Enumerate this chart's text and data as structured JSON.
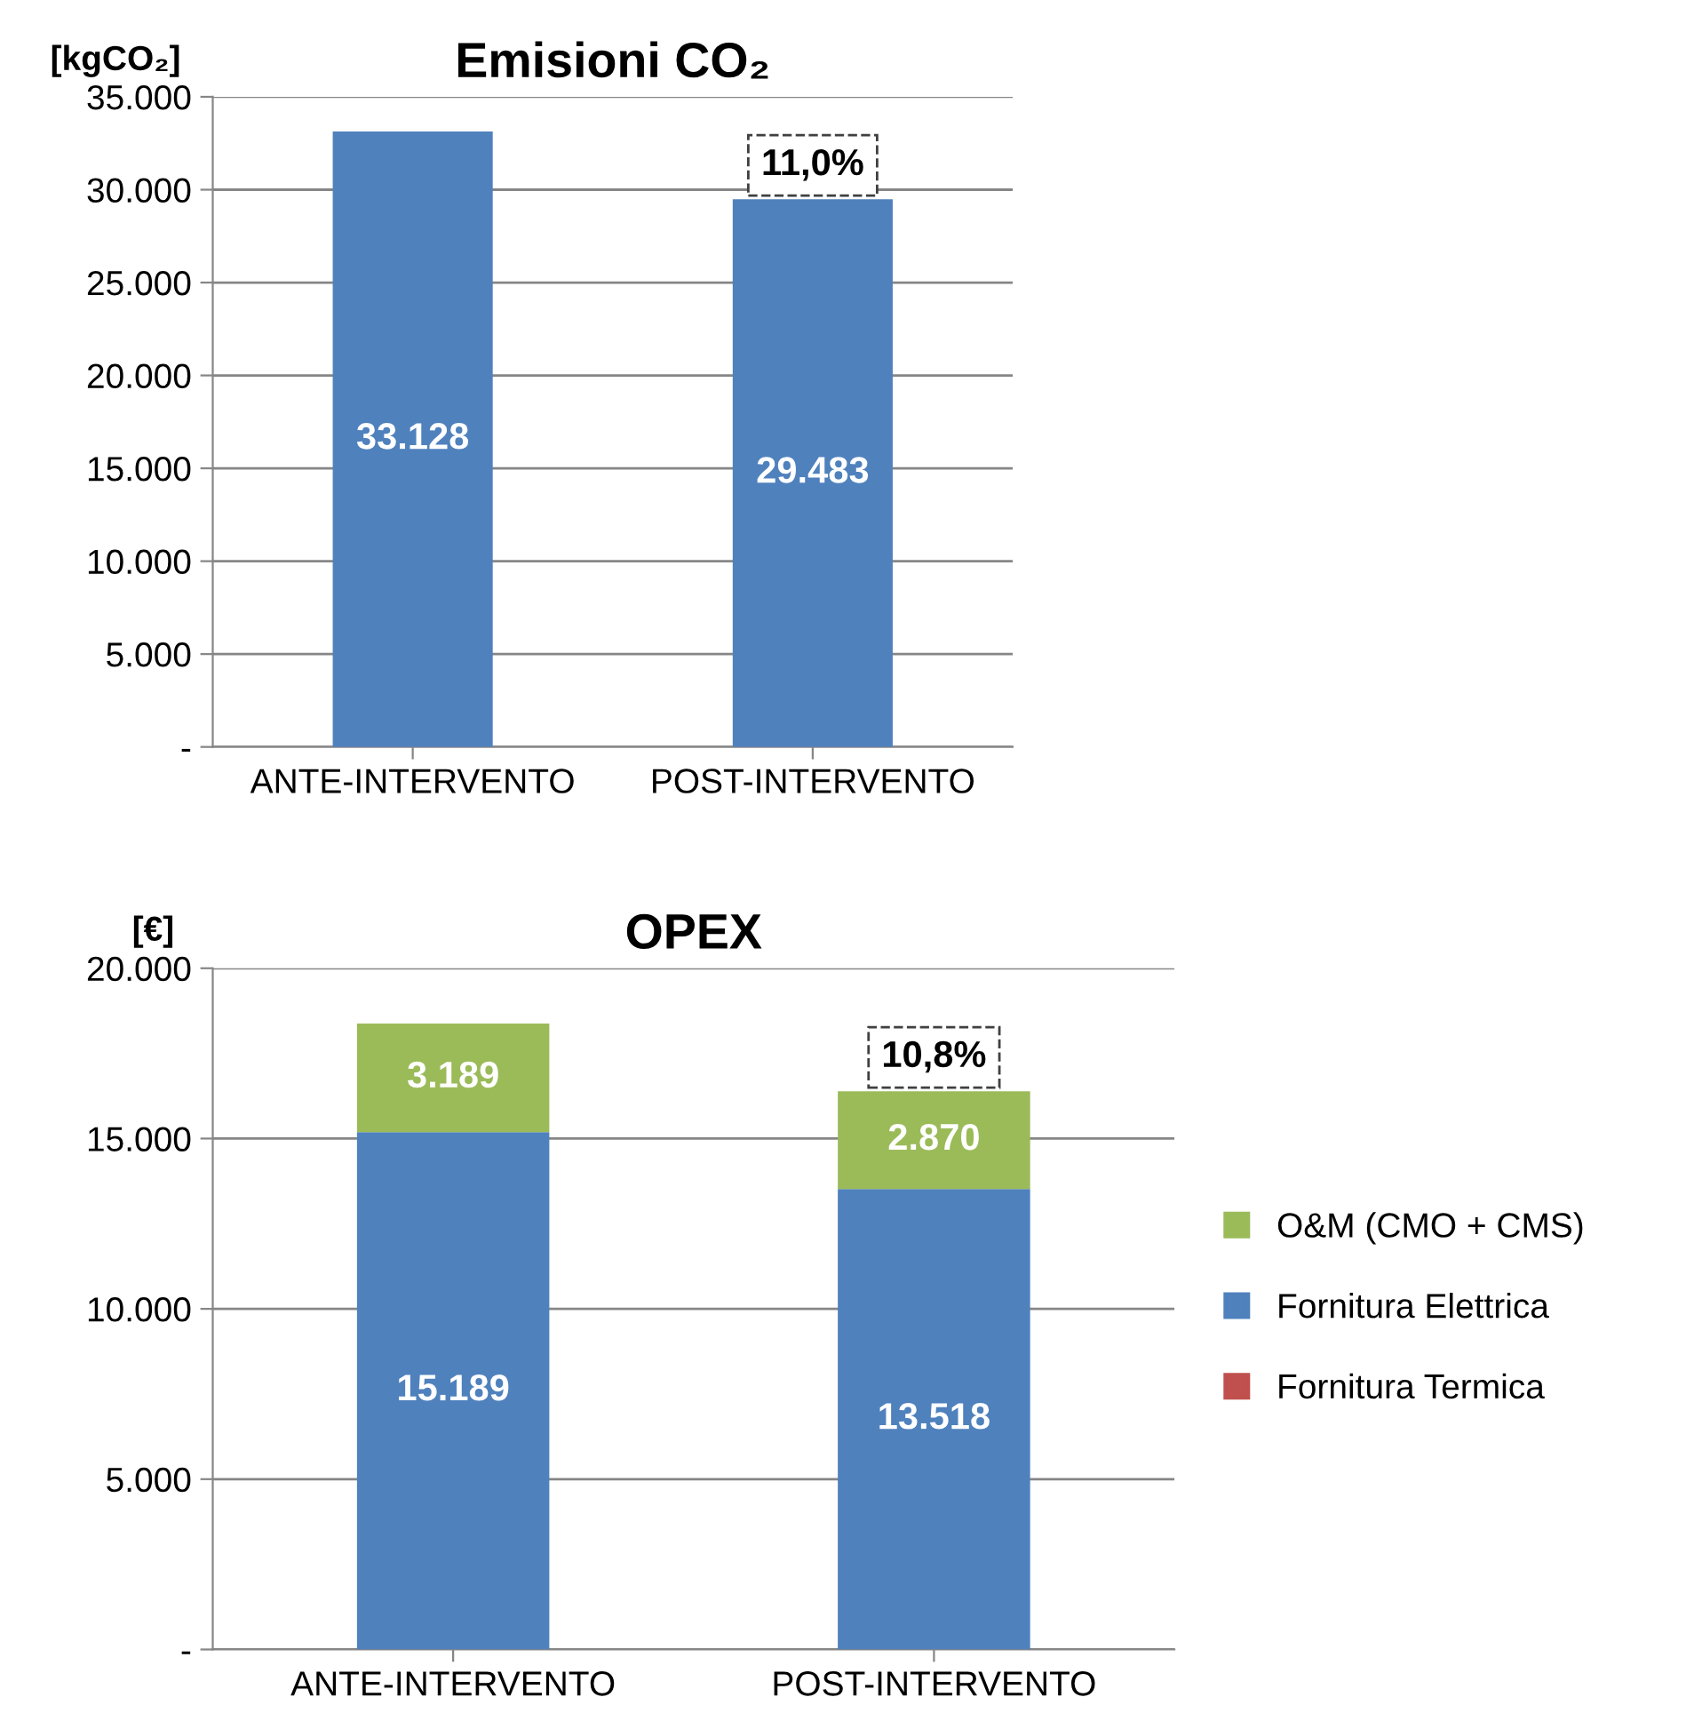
{
  "chart_data": [
    {
      "type": "bar",
      "title": "Emisioni CO₂",
      "ylabel": "[kgCO₂]",
      "categories": [
        "ANTE-INTERVENTO",
        "POST-INTERVENTO"
      ],
      "values": [
        33128,
        29483
      ],
      "color": "#4f81bd",
      "value_labels": [
        "33.128",
        "29.483"
      ],
      "ylim": [
        0,
        35000
      ],
      "yticks": [
        {
          "value": 0,
          "label": "-"
        },
        {
          "value": 5000,
          "label": "5.000"
        },
        {
          "value": 10000,
          "label": "10.000"
        },
        {
          "value": 15000,
          "label": "15.000"
        },
        {
          "value": 20000,
          "label": "20.000"
        },
        {
          "value": 25000,
          "label": "25.000"
        },
        {
          "value": 30000,
          "label": "30.000"
        },
        {
          "value": 35000,
          "label": "35.000"
        }
      ],
      "grid": "y",
      "annotations": [
        "11,0%"
      ]
    },
    {
      "type": "bar",
      "title": "OPEX",
      "ylabel": "[€]",
      "categories": [
        "ANTE-INTERVENTO",
        "POST-INTERVENTO"
      ],
      "stacked": true,
      "series": [
        {
          "name": "Fornitura Termica",
          "color": "#c0504d",
          "values": [
            0,
            0
          ],
          "value_labels": [
            null,
            null
          ]
        },
        {
          "name": "Fornitura Elettrica",
          "color": "#4f81bd",
          "values": [
            15189,
            13518
          ],
          "value_labels": [
            "15.189",
            "13.518"
          ]
        },
        {
          "name": "O&M (CMO + CMS)",
          "color": "#9bbb59",
          "values": [
            3189,
            2870
          ],
          "value_labels": [
            "3.189",
            "2.870"
          ]
        }
      ],
      "ylim": [
        0,
        20000
      ],
      "yticks": [
        {
          "value": 0,
          "label": "-"
        },
        {
          "value": 5000,
          "label": "5.000"
        },
        {
          "value": 10000,
          "label": "10.000"
        },
        {
          "value": 15000,
          "label": "15.000"
        },
        {
          "value": 20000,
          "label": "20.000"
        }
      ],
      "grid": "y",
      "legend": "right",
      "annotations": [
        "10,8%"
      ]
    }
  ]
}
